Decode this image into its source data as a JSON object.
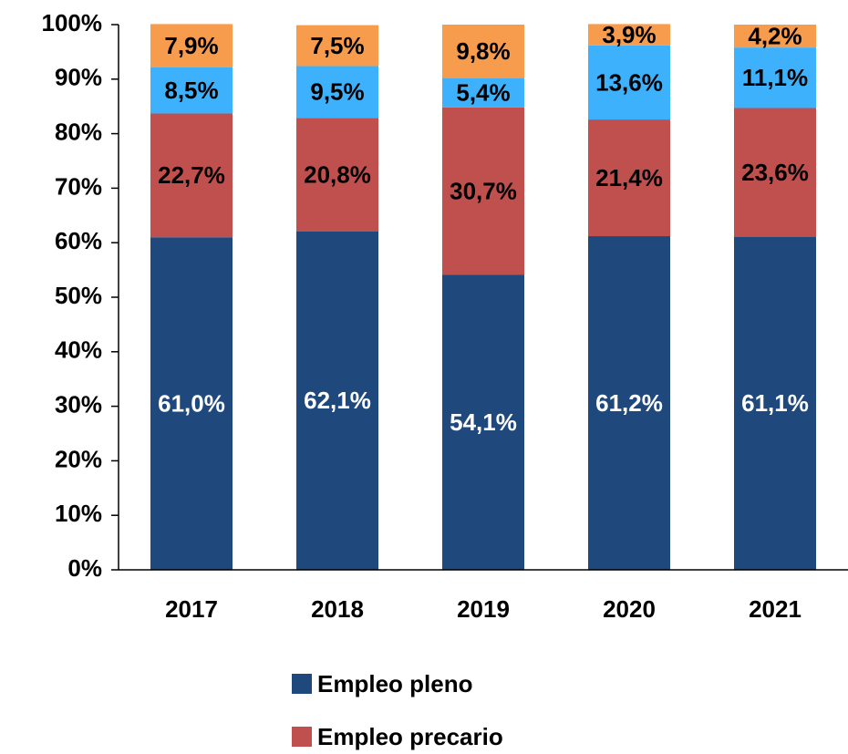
{
  "chart_data": {
    "type": "stacked_bar",
    "categories": [
      "2017",
      "2018",
      "2019",
      "2020",
      "2021"
    ],
    "series": [
      {
        "name": "Empleo pleno",
        "color": "#1f497d",
        "label_color": "#ffffff",
        "values": [
          61.0,
          62.1,
          54.1,
          61.2,
          61.1
        ],
        "value_labels": [
          "61,0%",
          "62,1%",
          "54,1%",
          "61,2%",
          "61,1%"
        ]
      },
      {
        "name": "Empleo precario",
        "color": "#c0504d",
        "label_color": "#000000",
        "values": [
          22.7,
          20.8,
          30.7,
          21.4,
          23.6
        ],
        "value_labels": [
          "22,7%",
          "20,8%",
          "30,7%",
          "21,4%",
          "23,6%"
        ]
      },
      {
        "color": "#3db1fb",
        "label_color": "#000000",
        "values": [
          8.5,
          9.5,
          5.4,
          13.6,
          11.1
        ],
        "value_labels": [
          "8,5%",
          "9,5%",
          "5,4%",
          "13,6%",
          "11,1%"
        ]
      },
      {
        "color": "#f79b4d",
        "label_color": "#000000",
        "values": [
          7.9,
          7.5,
          9.8,
          3.9,
          4.2
        ],
        "value_labels": [
          "7,9%",
          "7,5%",
          "9,8%",
          "3,9%",
          "4,2%"
        ]
      }
    ],
    "ylim": [
      0,
      100
    ],
    "yticks": [
      {
        "value": 0,
        "label": "0%"
      },
      {
        "value": 10,
        "label": "10%"
      },
      {
        "value": 20,
        "label": "20%"
      },
      {
        "value": 30,
        "label": "30%"
      },
      {
        "value": 40,
        "label": "40%"
      },
      {
        "value": 50,
        "label": "50%"
      },
      {
        "value": 60,
        "label": "60%"
      },
      {
        "value": 70,
        "label": "70%"
      },
      {
        "value": 80,
        "label": "80%"
      },
      {
        "value": 90,
        "label": "90%"
      },
      {
        "value": 100,
        "label": "100%"
      }
    ],
    "legend": "bottom"
  }
}
